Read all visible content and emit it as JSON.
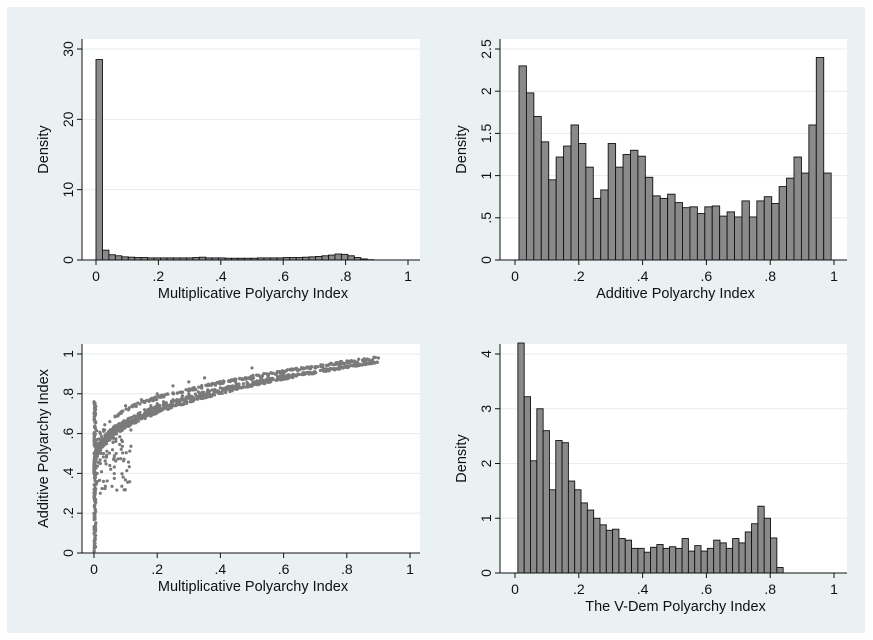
{
  "chart_data": [
    {
      "type": "bar",
      "xlabel": "Multiplicative Polyarchy Index",
      "ylabel": "Density",
      "xlim": [
        0,
        1
      ],
      "ylim": [
        0,
        30
      ],
      "xticks": [
        "0",
        ".2",
        ".4",
        ".6",
        ".8",
        "1"
      ],
      "yticks": [
        "0",
        "10",
        "20",
        "30"
      ],
      "bin_width": 0.0207,
      "bin_start": 0.0,
      "values": [
        28.5,
        1.4,
        0.75,
        0.6,
        0.45,
        0.4,
        0.35,
        0.35,
        0.3,
        0.3,
        0.3,
        0.3,
        0.3,
        0.3,
        0.3,
        0.35,
        0.4,
        0.3,
        0.3,
        0.3,
        0.25,
        0.25,
        0.25,
        0.25,
        0.25,
        0.3,
        0.3,
        0.3,
        0.3,
        0.35,
        0.35,
        0.35,
        0.4,
        0.45,
        0.5,
        0.6,
        0.7,
        0.85,
        0.8,
        0.6,
        0.35,
        0.15,
        0.05
      ]
    },
    {
      "type": "bar",
      "xlabel": "Additive Polyarchy Index",
      "ylabel": "Density",
      "xlim": [
        0,
        1
      ],
      "ylim": [
        0,
        2.5
      ],
      "xticks": [
        "0",
        ".2",
        ".4",
        ".6",
        ".8",
        "1"
      ],
      "yticks": [
        "0",
        ".5",
        "1",
        "1.5",
        "2",
        "2.5"
      ],
      "bin_width": 0.0233,
      "bin_start": 0.0125,
      "values": [
        2.3,
        1.98,
        1.7,
        1.4,
        0.95,
        1.22,
        1.35,
        1.6,
        1.38,
        1.1,
        0.73,
        0.83,
        1.38,
        1.1,
        1.25,
        1.3,
        1.23,
        0.98,
        0.76,
        0.73,
        0.78,
        0.68,
        0.62,
        0.63,
        0.55,
        0.63,
        0.64,
        0.52,
        0.57,
        0.51,
        0.7,
        0.51,
        0.7,
        0.75,
        0.67,
        0.87,
        0.97,
        1.22,
        1.03,
        1.6,
        2.4,
        1.03
      ]
    },
    {
      "type": "scatter",
      "xlabel": "Multiplicative Polyarchy Index",
      "ylabel": "Additive Polyarchy Index",
      "xlim": [
        0,
        1
      ],
      "ylim": [
        0,
        1
      ],
      "xticks": [
        "0",
        ".2",
        ".4",
        ".6",
        ".8",
        "1"
      ],
      "yticks": [
        "0",
        ".2",
        ".4",
        ".6",
        ".8",
        "1"
      ],
      "description_points": [
        [
          0,
          0.01
        ],
        [
          0,
          0.1
        ],
        [
          0,
          0.2
        ],
        [
          0,
          0.3
        ],
        [
          0,
          0.4
        ],
        [
          0,
          0.5
        ],
        [
          0,
          0.6
        ],
        [
          0,
          0.7
        ],
        [
          0,
          0.76
        ],
        [
          0.01,
          0.4
        ],
        [
          0.01,
          0.55
        ],
        [
          0.02,
          0.45
        ],
        [
          0.02,
          0.6
        ],
        [
          0.03,
          0.5
        ],
        [
          0.03,
          0.62
        ],
        [
          0.04,
          0.55
        ],
        [
          0.05,
          0.58
        ],
        [
          0.05,
          0.66
        ],
        [
          0.06,
          0.6
        ],
        [
          0.07,
          0.63
        ],
        [
          0.08,
          0.65
        ],
        [
          0.09,
          0.62
        ],
        [
          0.1,
          0.66
        ],
        [
          0.12,
          0.68
        ],
        [
          0.14,
          0.7
        ],
        [
          0.16,
          0.72
        ],
        [
          0.18,
          0.74
        ],
        [
          0.2,
          0.75
        ],
        [
          0.22,
          0.76
        ],
        [
          0.25,
          0.77
        ],
        [
          0.28,
          0.79
        ],
        [
          0.3,
          0.8
        ],
        [
          0.33,
          0.81
        ],
        [
          0.36,
          0.82
        ],
        [
          0.4,
          0.83
        ],
        [
          0.45,
          0.85
        ],
        [
          0.5,
          0.87
        ],
        [
          0.55,
          0.89
        ],
        [
          0.6,
          0.9
        ],
        [
          0.65,
          0.92
        ],
        [
          0.7,
          0.93
        ],
        [
          0.75,
          0.95
        ],
        [
          0.8,
          0.96
        ],
        [
          0.85,
          0.97
        ],
        [
          0.9,
          0.98
        ],
        [
          0.1,
          0.74
        ],
        [
          0.15,
          0.77
        ],
        [
          0.2,
          0.8
        ],
        [
          0.25,
          0.84
        ],
        [
          0.3,
          0.86
        ],
        [
          0.35,
          0.88
        ],
        [
          0.5,
          0.93
        ],
        [
          0.02,
          0.3
        ],
        [
          0.03,
          0.36
        ],
        [
          0.05,
          0.44
        ],
        [
          0.07,
          0.5
        ],
        [
          0.09,
          0.56
        ]
      ]
    },
    {
      "type": "bar",
      "xlabel": "The V-Dem Polyarchy Index",
      "ylabel": "Density",
      "xlim": [
        0,
        1
      ],
      "ylim": [
        0,
        4
      ],
      "xticks": [
        "0",
        ".2",
        ".4",
        ".6",
        ".8",
        "1"
      ],
      "yticks": [
        "0",
        "1",
        "2",
        "3",
        "4"
      ],
      "bin_width": 0.0198,
      "bin_start": 0.009,
      "values": [
        4.2,
        3.22,
        2.05,
        3.0,
        2.6,
        1.52,
        2.42,
        2.38,
        1.68,
        1.52,
        1.28,
        1.15,
        1.0,
        0.88,
        0.78,
        0.8,
        0.63,
        0.6,
        0.45,
        0.45,
        0.38,
        0.47,
        0.52,
        0.45,
        0.48,
        0.45,
        0.63,
        0.4,
        0.5,
        0.4,
        0.45,
        0.6,
        0.55,
        0.45,
        0.63,
        0.55,
        0.75,
        0.9,
        1.22,
        1.0,
        0.64,
        0.1
      ]
    }
  ]
}
